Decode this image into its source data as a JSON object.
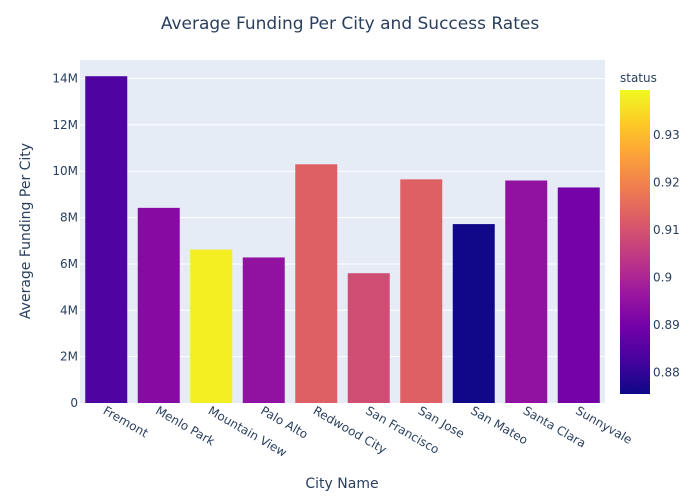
{
  "chart_data": {
    "type": "bar",
    "title": "Average Funding Per City and Success Rates",
    "xlabel": "City Name",
    "ylabel": "Average Funding Per City",
    "categories": [
      "Fremont",
      "Menlo Park",
      "Mountain View",
      "Palo Alto",
      "Redwood City",
      "San Francisco",
      "San Jose",
      "San Mateo",
      "Santa Clara",
      "Sunnyvale"
    ],
    "values": [
      14100000,
      8420000,
      6620000,
      6280000,
      10300000,
      5600000,
      9650000,
      7720000,
      9600000,
      9300000
    ],
    "status": [
      0.884,
      0.893,
      0.938,
      0.895,
      0.913,
      0.909,
      0.913,
      0.876,
      0.895,
      0.89
    ],
    "ylim": [
      0,
      14800000
    ],
    "y_ticks": [
      0,
      2000000,
      4000000,
      6000000,
      8000000,
      10000000,
      12000000,
      14000000
    ],
    "y_tick_labels": [
      "0",
      "2M",
      "4M",
      "6M",
      "8M",
      "10M",
      "12M",
      "14M"
    ],
    "grid": true,
    "colorbar": {
      "title": "status",
      "range": [
        0.8755,
        0.9395
      ],
      "ticks": [
        0.88,
        0.89,
        0.9,
        0.91,
        0.92,
        0.93
      ],
      "tick_labels": [
        "0.88",
        "0.89",
        "0.9",
        "0.91",
        "0.92",
        "0.93"
      ],
      "colorscale": [
        "#0d0887",
        "#46039f",
        "#7201a8",
        "#9c179e",
        "#bd3786",
        "#d8576b",
        "#ed7953",
        "#fb9f3a",
        "#fdca26",
        "#f0f921"
      ]
    },
    "colors": {
      "plot_background": "#e5ecf6",
      "text": "#2a3f5f"
    }
  }
}
